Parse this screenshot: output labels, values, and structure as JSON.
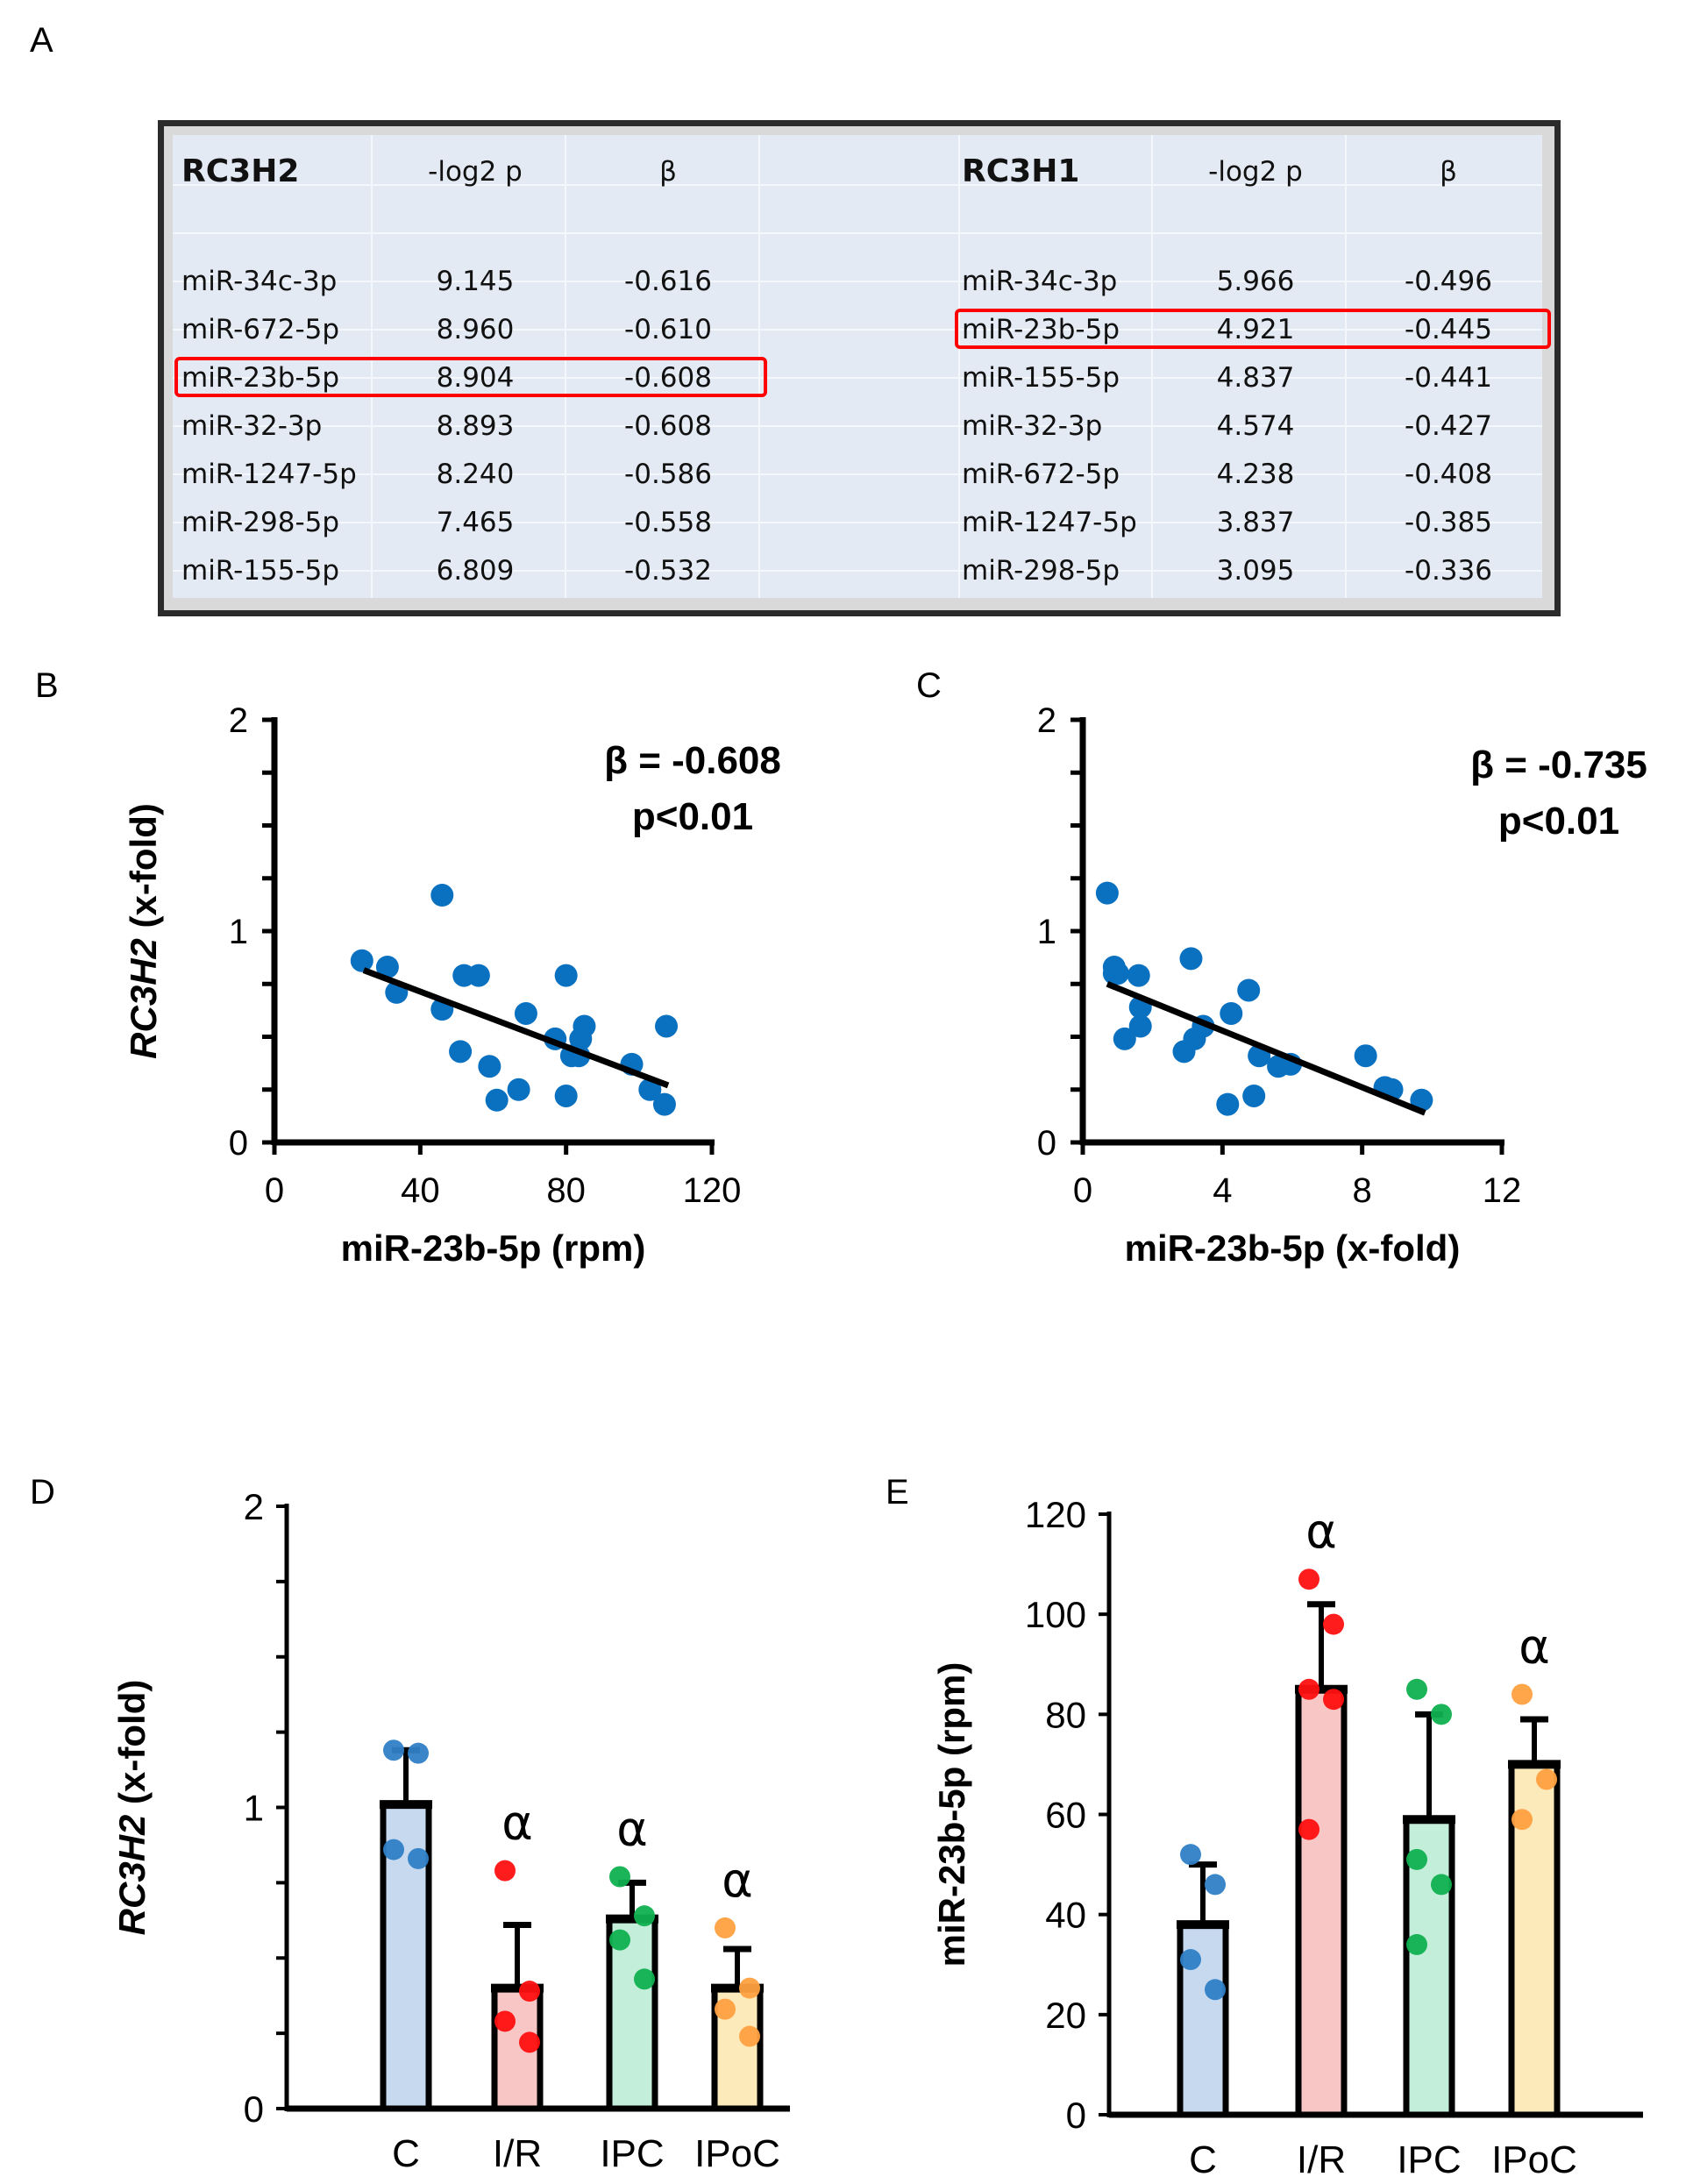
{
  "panels": {
    "a": "A",
    "b": "B",
    "c": "C",
    "d": "D",
    "e": "E"
  },
  "table": {
    "left": {
      "title": "RC3H2",
      "col_p": "-log2 p",
      "col_beta": "β",
      "rows": [
        {
          "name": "miR-34c-3p",
          "p": "9.145",
          "beta": "-0.616"
        },
        {
          "name": "miR-672-5p",
          "p": "8.960",
          "beta": "-0.610"
        },
        {
          "name": "miR-23b-5p",
          "p": "8.904",
          "beta": "-0.608",
          "highlight": true
        },
        {
          "name": "miR-32-3p",
          "p": "8.893",
          "beta": "-0.608"
        },
        {
          "name": "miR-1247-5p",
          "p": "8.240",
          "beta": "-0.586"
        },
        {
          "name": "miR-298-5p",
          "p": "7.465",
          "beta": "-0.558"
        },
        {
          "name": "miR-155-5p",
          "p": "6.809",
          "beta": "-0.532"
        }
      ]
    },
    "right": {
      "title": "RC3H1",
      "col_p": "-log2 p",
      "col_beta": "β",
      "rows": [
        {
          "name": "miR-34c-3p",
          "p": "5.966",
          "beta": "-0.496"
        },
        {
          "name": "miR-23b-5p",
          "p": "4.921",
          "beta": "-0.445",
          "highlight": true
        },
        {
          "name": "miR-155-5p",
          "p": "4.837",
          "beta": "-0.441"
        },
        {
          "name": "miR-32-3p",
          "p": "4.574",
          "beta": "-0.427"
        },
        {
          "name": "miR-672-5p",
          "p": "4.238",
          "beta": "-0.408"
        },
        {
          "name": "miR-1247-5p",
          "p": "3.837",
          "beta": "-0.385"
        },
        {
          "name": "miR-298-5p",
          "p": "3.095",
          "beta": "-0.336"
        }
      ]
    },
    "highlight_color": "#ff0000"
  },
  "chart_data": [
    {
      "id": "B",
      "type": "scatter",
      "xlabel": "miR-23b-5p (rpm)",
      "ylabel": "RC3H2 (x-fold)",
      "xlim": [
        0,
        120
      ],
      "ylim": [
        0,
        2
      ],
      "xticks": [
        0,
        40,
        80,
        120
      ],
      "yticks": [
        0,
        1,
        2
      ],
      "annotation": [
        "β = -0.608",
        "p<0.01"
      ],
      "point_color": "#0a70c0",
      "points": [
        [
          24,
          0.86
        ],
        [
          31,
          0.83
        ],
        [
          33.5,
          0.71
        ],
        [
          46,
          1.17
        ],
        [
          46,
          0.63
        ],
        [
          52,
          0.79
        ],
        [
          56,
          0.79
        ],
        [
          51,
          0.43
        ],
        [
          59,
          0.36
        ],
        [
          61,
          0.2
        ],
        [
          67,
          0.25
        ],
        [
          69,
          0.61
        ],
        [
          77,
          0.49
        ],
        [
          80,
          0.79
        ],
        [
          80,
          0.22
        ],
        [
          81.5,
          0.41
        ],
        [
          83.5,
          0.41
        ],
        [
          84,
          0.49
        ],
        [
          85,
          0.55
        ],
        [
          98,
          0.37
        ],
        [
          103,
          0.25
        ],
        [
          107.5,
          0.55
        ],
        [
          107,
          0.18
        ]
      ],
      "fit_line": [
        [
          24.5,
          0.815
        ],
        [
          108,
          0.27
        ]
      ]
    },
    {
      "id": "C",
      "type": "scatter",
      "xlabel": "miR-23b-5p (x-fold)",
      "ylabel": "",
      "xlim": [
        0,
        12
      ],
      "ylim": [
        0,
        2
      ],
      "xticks": [
        0,
        4,
        8,
        12
      ],
      "yticks": [
        0,
        1,
        2
      ],
      "annotation": [
        "β = -0.735",
        "p<0.01"
      ],
      "point_color": "#0a70c0",
      "points": [
        [
          0.7,
          1.18
        ],
        [
          0.9,
          0.83
        ],
        [
          0.9,
          0.8
        ],
        [
          1.0,
          0.8
        ],
        [
          1.6,
          0.79
        ],
        [
          1.2,
          0.49
        ],
        [
          1.65,
          0.64
        ],
        [
          1.65,
          0.55
        ],
        [
          3.1,
          0.87
        ],
        [
          2.9,
          0.43
        ],
        [
          3.2,
          0.49
        ],
        [
          3.45,
          0.55
        ],
        [
          4.25,
          0.61
        ],
        [
          4.75,
          0.72
        ],
        [
          4.15,
          0.18
        ],
        [
          4.9,
          0.22
        ],
        [
          5.05,
          0.41
        ],
        [
          5.6,
          0.36
        ],
        [
          5.95,
          0.37
        ],
        [
          8.1,
          0.41
        ],
        [
          8.65,
          0.26
        ],
        [
          8.85,
          0.25
        ],
        [
          9.7,
          0.2
        ]
      ],
      "fit_line": [
        [
          0.7,
          0.75
        ],
        [
          9.8,
          0.14
        ]
      ]
    },
    {
      "id": "D",
      "type": "bar",
      "ylabel": "RC3H2 (x-fold)",
      "ylim": [
        0,
        2
      ],
      "yticks": [
        0,
        1,
        2
      ],
      "minor_step": 0.25,
      "categories": [
        "C",
        "I/R",
        "IPC",
        "IPoC"
      ],
      "values": [
        1.01,
        0.4,
        0.63,
        0.4
      ],
      "error_upper": [
        1.19,
        0.61,
        0.75,
        0.53
      ],
      "significance": [
        "",
        "α",
        "α",
        "α"
      ],
      "points": [
        [
          1.19,
          1.18,
          0.86,
          0.83
        ],
        [
          0.79,
          0.39,
          0.29,
          0.22
        ],
        [
          0.77,
          0.64,
          0.56,
          0.43
        ],
        [
          0.6,
          0.4,
          0.33,
          0.24
        ]
      ],
      "bar_colors": [
        "#c7d9ee",
        "#f9c6c6",
        "#c3eeda",
        "#fdeabb"
      ],
      "point_colors": [
        "#2f7fc6",
        "#ff1010",
        "#10b050",
        "#ffa040"
      ]
    },
    {
      "id": "E",
      "type": "bar",
      "ylabel": "miR-23b-5p (rpm)",
      "ylim": [
        0,
        120
      ],
      "yticks": [
        0,
        20,
        40,
        60,
        80,
        100,
        120
      ],
      "categories": [
        "C",
        "I/R",
        "IPC",
        "IPoC"
      ],
      "values": [
        38,
        85,
        59,
        70
      ],
      "error_upper": [
        50,
        102,
        80,
        79
      ],
      "significance": [
        "α",
        "",
        "α"
      ],
      "significance_by_group": [
        "",
        "α",
        "",
        "α"
      ],
      "points": [
        [
          52,
          46,
          31,
          25
        ],
        [
          107,
          98,
          85,
          83,
          57
        ],
        [
          85,
          80,
          51,
          46,
          34
        ],
        [
          84,
          67,
          59
        ]
      ],
      "bar_colors": [
        "#c7d9ee",
        "#f9c6c6",
        "#c3eeda",
        "#fdeabb"
      ],
      "point_colors": [
        "#2f7fc6",
        "#ff1010",
        "#10b050",
        "#ffa040"
      ]
    }
  ]
}
